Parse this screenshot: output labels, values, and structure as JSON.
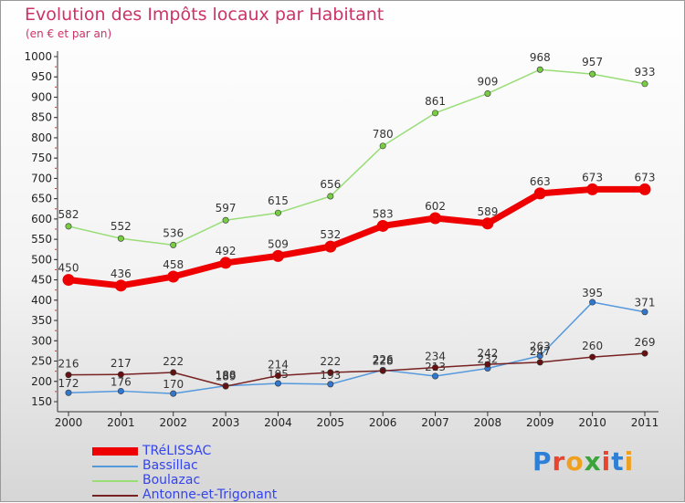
{
  "header": {
    "title": "Evolution des Impôts locaux par Habitant",
    "subtitle": "(en € et par an)"
  },
  "logo": {
    "text": "Proxiti",
    "colors": [
      "#2e7fd6",
      "#e8442e",
      "#f0a020",
      "#3aa53a",
      "#e8442e",
      "#2e7fd6",
      "#f0a020"
    ]
  },
  "chart_data": {
    "type": "line",
    "x": [
      "2000",
      "2001",
      "2002",
      "2003",
      "2004",
      "2005",
      "2006",
      "2007",
      "2008",
      "2009",
      "2010",
      "2011"
    ],
    "ylim": [
      150,
      1000
    ],
    "yticks": [
      150,
      200,
      250,
      300,
      350,
      400,
      450,
      500,
      550,
      600,
      650,
      700,
      750,
      800,
      850,
      900,
      950,
      1000
    ],
    "grid": false,
    "legend": "bottom-left",
    "series": [
      {
        "name": "Boulazac",
        "color": "#99dd77",
        "point_color": "#77cc44",
        "values": [
          582,
          552,
          536,
          597,
          615,
          656,
          780,
          861,
          909,
          968,
          957,
          933
        ]
      },
      {
        "name": "Bassillac",
        "color": "#5599dd",
        "point_color": "#3377cc",
        "values": [
          172,
          176,
          170,
          189,
          195,
          193,
          228,
          213,
          232,
          263,
          395,
          371
        ],
        "labels": [
          "172",
          "176",
          "170",
          "189",
          "195",
          "193",
          "228",
          "213",
          "232",
          "263",
          "395",
          "371"
        ]
      },
      {
        "name": "Antonne-et-Trigonant",
        "color": "#772222",
        "point_color": "#661111",
        "values": [
          216,
          217,
          222,
          188,
          214,
          222,
          226,
          234,
          242,
          247,
          260,
          269
        ],
        "labels": [
          "216",
          "217",
          "222",
          "188",
          "214",
          "222",
          "226",
          "234",
          "242",
          "247",
          "260",
          "269"
        ]
      },
      {
        "name": "TRéLISSAC",
        "color": "#ee0000",
        "point_color": "#ee0000",
        "values": [
          450,
          436,
          458,
          492,
          509,
          532,
          583,
          602,
          589,
          663,
          673,
          673
        ]
      }
    ]
  }
}
